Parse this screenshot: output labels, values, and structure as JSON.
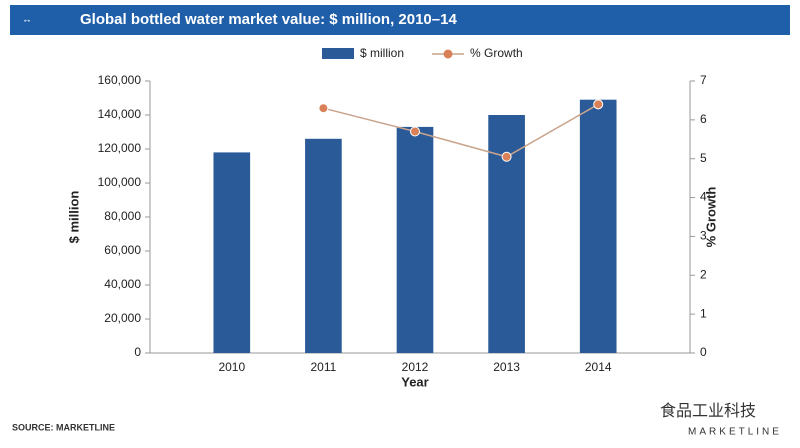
{
  "chart_data": {
    "type": "bar-line",
    "title": "Global bottled water market value: $ million, 2010–14",
    "x_label": "Year",
    "y_label": "$ million",
    "y2_label": "% Growth",
    "source": "SOURCE: MARKETLINE",
    "watermark": "食品工业科技",
    "brand": "MARKETLINE",
    "categories": [
      "2010",
      "2011",
      "2012",
      "2013",
      "2014"
    ],
    "series": [
      {
        "name": "$ million",
        "type": "bar",
        "color": "#2a5a98",
        "values": [
          118000,
          126000,
          133000,
          140000,
          149000
        ]
      },
      {
        "name": "% Growth",
        "type": "line",
        "axis": "y2",
        "color": "#c9a48c",
        "marker_color": "#d9825a",
        "values": [
          null,
          6.3,
          5.7,
          5.05,
          6.4
        ]
      }
    ],
    "ylim": [
      0,
      160000
    ],
    "yticks": [
      0,
      {
        "value": 20000,
        "label": "20,000"
      },
      {
        "value": 40000,
        "label": "40,000"
      },
      {
        "value": 60000,
        "label": "60,000"
      },
      {
        "value": 80000,
        "label": "80,000"
      },
      {
        "value": 100000,
        "label": "100,000"
      },
      {
        "value": 120000,
        "label": "120,000"
      },
      {
        "value": 140000,
        "label": "140,000"
      },
      {
        "value": 160000,
        "label": "160,000"
      }
    ],
    "y2lim": [
      0,
      7
    ],
    "y2ticks": [
      0,
      1,
      2,
      3,
      4,
      5,
      6,
      7
    ],
    "grid": false
  }
}
